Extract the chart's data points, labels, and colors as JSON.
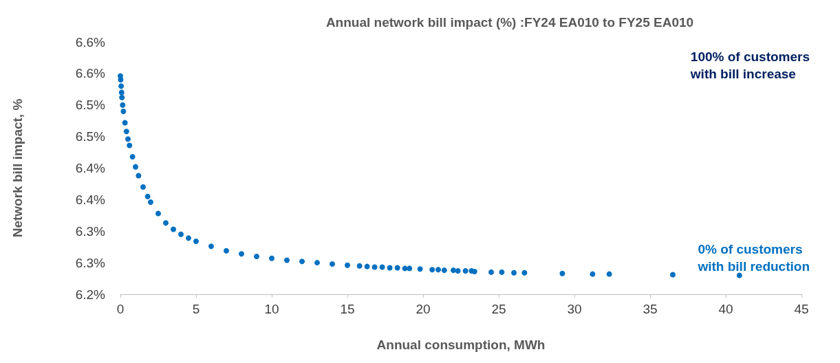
{
  "chart_data": {
    "type": "scatter",
    "title": "Annual network bill impact (%) :FY24 EA010 to FY25 EA010",
    "xlabel": "Annual consumption, MWh",
    "ylabel": "Network bill impact, %",
    "annotations": [
      "100% of customers\nwith bill increase",
      "0% of customers\nwith bill reduction"
    ],
    "series": [
      {
        "color": "#0070c0",
        "x": [
          0,
          0.02,
          0.05,
          0.08,
          0.1,
          0.15,
          0.2,
          0.3,
          0.4,
          0.5,
          0.6,
          0.8,
          1,
          1.2,
          1.5,
          1.8,
          2,
          2.5,
          3,
          3.5,
          4,
          4.5,
          5,
          6,
          7,
          8,
          9,
          10,
          11,
          12,
          13,
          14,
          15,
          15.8,
          16.3,
          16.8,
          17.3,
          17.8,
          18.3,
          18.8,
          19.1,
          19.8,
          20.6,
          21.0,
          21.4,
          22.0,
          22.3,
          22.8,
          23.2,
          23.4,
          24.5,
          25.2,
          26.0,
          26.7,
          29.2,
          31.2,
          32.3,
          36.5,
          40.9
        ],
        "values": [
          6.546,
          6.54,
          6.53,
          6.52,
          6.512,
          6.5,
          6.49,
          6.472,
          6.458,
          6.446,
          6.436,
          6.418,
          6.402,
          6.388,
          6.37,
          6.355,
          6.346,
          6.328,
          6.313,
          6.303,
          6.295,
          6.289,
          6.284,
          6.276,
          6.269,
          6.264,
          6.26,
          6.257,
          6.254,
          6.252,
          6.25,
          6.248,
          6.246,
          6.245,
          6.244,
          6.243,
          6.243,
          6.242,
          6.242,
          6.241,
          6.241,
          6.24,
          6.239,
          6.239,
          6.238,
          6.238,
          6.237,
          6.237,
          6.237,
          6.236,
          6.235,
          6.235,
          6.234,
          6.234,
          6.233,
          6.232,
          6.232,
          6.231,
          6.23
        ]
      }
    ],
    "xlim": [
      0,
      45
    ],
    "xticks": [
      0,
      5,
      10,
      15,
      20,
      25,
      30,
      35,
      40,
      45
    ],
    "ylim": [
      6.2,
      6.6
    ],
    "yticks": [
      {
        "value": 6.2,
        "label": "6.2%"
      },
      {
        "value": 6.25,
        "label": "6.3%"
      },
      {
        "value": 6.3,
        "label": "6.3%"
      },
      {
        "value": 6.35,
        "label": "6.4%"
      },
      {
        "value": 6.4,
        "label": "6.4%"
      },
      {
        "value": 6.45,
        "label": "6.5%"
      },
      {
        "value": 6.5,
        "label": "6.5%"
      },
      {
        "value": 6.55,
        "label": "6.6%"
      },
      {
        "value": 6.6,
        "label": "6.6%"
      }
    ],
    "marker": "circle",
    "grid": false
  }
}
